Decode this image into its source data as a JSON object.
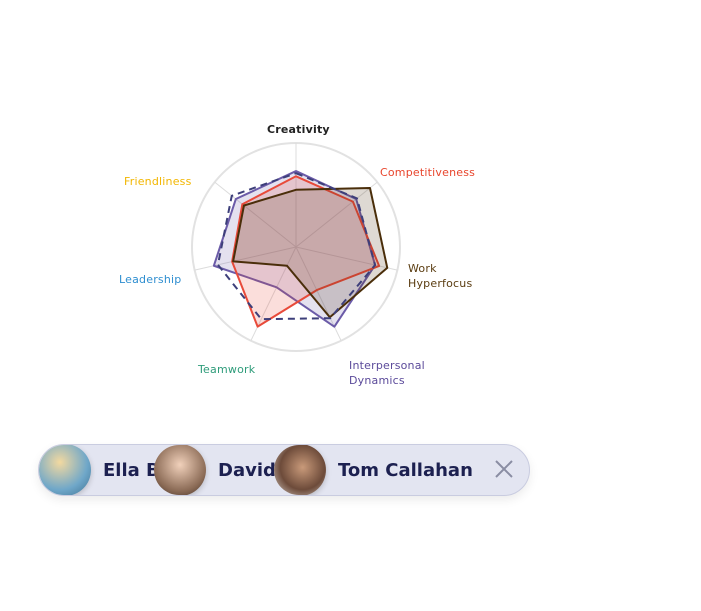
{
  "chart_data": {
    "type": "radar",
    "categories": [
      "Creativity",
      "Competitiveness",
      "Work Hyperfocus",
      "Interpersonal Dynamics",
      "Teamwork",
      "Leadership",
      "Friendliness"
    ],
    "category_colors": [
      "#222222",
      "#e8452c",
      "#5a3c10",
      "#5b4a9a",
      "#2e9c7a",
      "#2e8ed0",
      "#f2b600"
    ],
    "rlim": [
      0,
      100
    ],
    "series": [
      {
        "color": "#6b5ba8",
        "fill": true,
        "line_style": "solid",
        "values": [
          73,
          74,
          78,
          85,
          43,
          81,
          74
        ]
      },
      {
        "color": "#e84a3a",
        "fill": true,
        "line_style": "solid",
        "values": [
          68,
          70,
          82,
          46,
          85,
          63,
          66
        ]
      },
      {
        "color": "#4a2e0a",
        "fill": true,
        "line_style": "solid",
        "values": [
          55,
          91,
          90,
          75,
          20,
          62,
          64
        ]
      },
      {
        "color": "#3d3f7a",
        "fill": false,
        "line_style": "dashed",
        "values": [
          71,
          75,
          78,
          76,
          77,
          77,
          79
        ]
      }
    ]
  },
  "people": [
    {
      "name": "Ella B"
    },
    {
      "name": "David"
    },
    {
      "name": "Tom Callahan"
    }
  ]
}
